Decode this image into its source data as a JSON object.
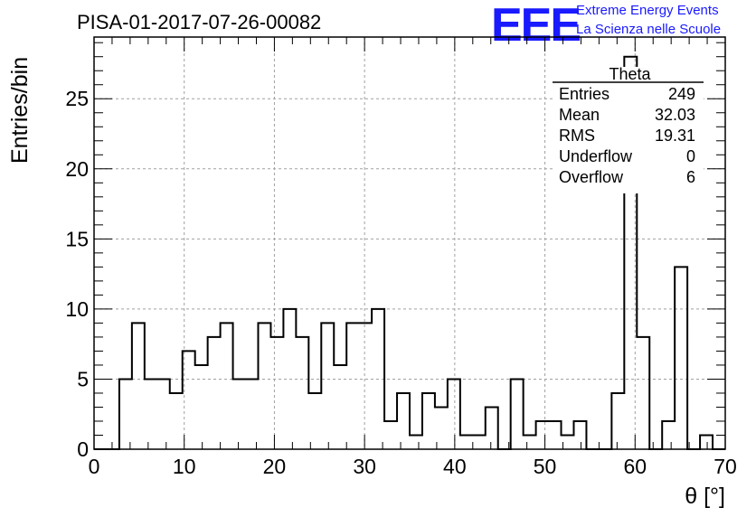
{
  "chart_data": {
    "type": "bar",
    "title": "PISA-01-2017-07-26-00082",
    "xlabel": "θ [°]",
    "ylabel": "Entries/bin",
    "xlim": [
      0,
      70
    ],
    "ylim": [
      0,
      29.4
    ],
    "grid": true,
    "x_ticks": [
      0,
      10,
      20,
      30,
      40,
      50,
      60,
      70
    ],
    "y_ticks": [
      0,
      5,
      10,
      15,
      20,
      25
    ],
    "bin_edges": [
      0,
      1.4,
      2.8,
      4.2,
      5.6,
      7.0,
      8.4,
      9.8,
      11.2,
      12.6,
      14.0,
      15.4,
      16.8,
      18.2,
      19.6,
      21.0,
      22.4,
      23.8,
      25.2,
      26.6,
      28.0,
      29.4,
      30.8,
      32.2,
      33.6,
      35.0,
      36.4,
      37.8,
      39.2,
      40.6,
      42.0,
      43.4,
      44.8,
      46.2,
      47.6,
      49.0,
      50.4,
      51.8,
      53.2,
      54.6,
      56.0,
      57.4,
      58.8,
      60.2,
      61.6,
      63.0,
      64.4,
      65.8,
      67.2,
      68.6,
      70.0
    ],
    "values": [
      0,
      0,
      5,
      9,
      5,
      5,
      4,
      7,
      6,
      8,
      9,
      5,
      5,
      9,
      8,
      10,
      8,
      4,
      9,
      6,
      9,
      9,
      10,
      2,
      4,
      1,
      4,
      3,
      5,
      1,
      1,
      3,
      0,
      5,
      1,
      2,
      2,
      1,
      2,
      0,
      0,
      4,
      28,
      8,
      0,
      2,
      13,
      0,
      1,
      0
    ],
    "stats": {
      "name": "Theta",
      "rows": [
        {
          "label": "Entries",
          "value": "249"
        },
        {
          "label": "Mean",
          "value": "32.03"
        },
        {
          "label": "RMS",
          "value": "19.31"
        },
        {
          "label": "Underflow",
          "value": "0"
        },
        {
          "label": "Overflow",
          "value": "6"
        }
      ]
    }
  },
  "logo": {
    "text": "EEE",
    "line1": "Extreme Energy Events",
    "line2": "La Scienza nelle Scuole",
    "color": "#1a1aff"
  }
}
